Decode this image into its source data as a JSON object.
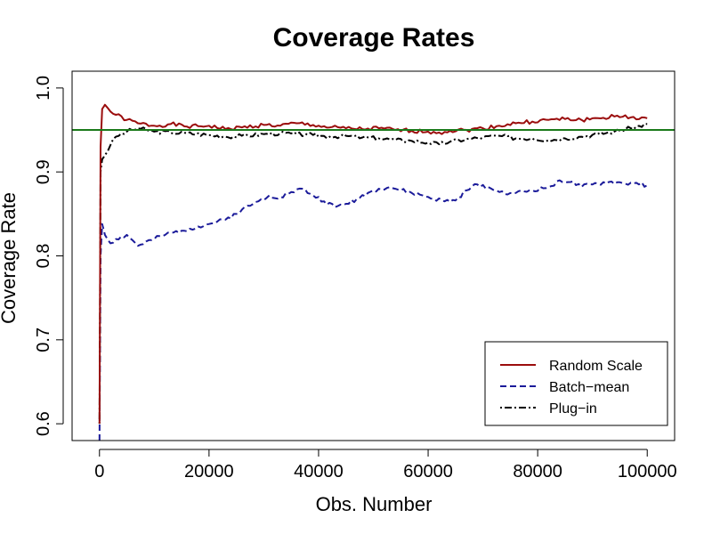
{
  "chart_data": {
    "type": "line",
    "title": "Coverage Rates",
    "xlabel": "Obs. Number",
    "ylabel": "Coverage Rate",
    "xlim": [
      -5000,
      105000
    ],
    "ylim": [
      0.58,
      1.02
    ],
    "xticks": [
      0,
      20000,
      40000,
      60000,
      80000,
      100000
    ],
    "xtick_labels": [
      "0",
      "20000",
      "40000",
      "60000",
      "80000",
      "100000"
    ],
    "yticks": [
      0.6,
      0.7,
      0.8,
      0.9,
      1.0
    ],
    "ytick_labels": [
      "0.6",
      "0.7",
      "0.8",
      "0.9",
      "1.0"
    ],
    "grid": false,
    "legend_position": "bottom-right",
    "reference_line": {
      "y": 0.95,
      "color": "#1a7a1a"
    },
    "series": [
      {
        "name": "Random Scale",
        "color": "#9b0d0d",
        "dash": "solid",
        "points": [
          [
            0,
            0.6
          ],
          [
            200,
            0.93
          ],
          [
            500,
            0.975
          ],
          [
            1000,
            0.98
          ],
          [
            2000,
            0.972
          ],
          [
            3000,
            0.968
          ],
          [
            5000,
            0.962
          ],
          [
            7000,
            0.958
          ],
          [
            10000,
            0.955
          ],
          [
            13000,
            0.957
          ],
          [
            16000,
            0.954
          ],
          [
            20000,
            0.955
          ],
          [
            23000,
            0.951
          ],
          [
            26000,
            0.953
          ],
          [
            30000,
            0.956
          ],
          [
            33000,
            0.955
          ],
          [
            36000,
            0.958
          ],
          [
            39000,
            0.956
          ],
          [
            42000,
            0.953
          ],
          [
            45000,
            0.952
          ],
          [
            48000,
            0.951
          ],
          [
            51000,
            0.952
          ],
          [
            54000,
            0.95
          ],
          [
            57000,
            0.949
          ],
          [
            60000,
            0.948
          ],
          [
            62000,
            0.947
          ],
          [
            64000,
            0.949
          ],
          [
            67000,
            0.95
          ],
          [
            70000,
            0.952
          ],
          [
            73000,
            0.955
          ],
          [
            76000,
            0.958
          ],
          [
            79000,
            0.96
          ],
          [
            82000,
            0.962
          ],
          [
            85000,
            0.963
          ],
          [
            88000,
            0.962
          ],
          [
            91000,
            0.964
          ],
          [
            94000,
            0.966
          ],
          [
            97000,
            0.965
          ],
          [
            100000,
            0.964
          ]
        ]
      },
      {
        "name": "Batch−mean",
        "color": "#1b1b9a",
        "dash": "dashed",
        "points": [
          [
            0,
            0.58
          ],
          [
            200,
            0.8
          ],
          [
            500,
            0.838
          ],
          [
            1000,
            0.825
          ],
          [
            2000,
            0.815
          ],
          [
            3000,
            0.82
          ],
          [
            5000,
            0.825
          ],
          [
            7000,
            0.812
          ],
          [
            10000,
            0.82
          ],
          [
            12000,
            0.825
          ],
          [
            15000,
            0.83
          ],
          [
            18000,
            0.835
          ],
          [
            20000,
            0.838
          ],
          [
            23000,
            0.843
          ],
          [
            26000,
            0.855
          ],
          [
            29000,
            0.865
          ],
          [
            31000,
            0.872
          ],
          [
            33000,
            0.87
          ],
          [
            35000,
            0.876
          ],
          [
            37000,
            0.88
          ],
          [
            39000,
            0.872
          ],
          [
            41000,
            0.865
          ],
          [
            43000,
            0.858
          ],
          [
            45000,
            0.862
          ],
          [
            47000,
            0.868
          ],
          [
            49000,
            0.875
          ],
          [
            51000,
            0.88
          ],
          [
            53000,
            0.882
          ],
          [
            55000,
            0.878
          ],
          [
            57000,
            0.875
          ],
          [
            59000,
            0.872
          ],
          [
            61000,
            0.868
          ],
          [
            63000,
            0.865
          ],
          [
            65000,
            0.866
          ],
          [
            67000,
            0.878
          ],
          [
            69000,
            0.885
          ],
          [
            71000,
            0.882
          ],
          [
            73000,
            0.876
          ],
          [
            76000,
            0.875
          ],
          [
            79000,
            0.878
          ],
          [
            82000,
            0.882
          ],
          [
            84000,
            0.89
          ],
          [
            86000,
            0.888
          ],
          [
            88000,
            0.882
          ],
          [
            90000,
            0.885
          ],
          [
            93000,
            0.888
          ],
          [
            96000,
            0.886
          ],
          [
            98000,
            0.887
          ],
          [
            100000,
            0.884
          ]
        ]
      },
      {
        "name": "Plug−in",
        "color": "#000000",
        "dash": "dotdash",
        "points": [
          [
            0,
            0.6
          ],
          [
            200,
            0.9
          ],
          [
            500,
            0.915
          ],
          [
            1000,
            0.92
          ],
          [
            2000,
            0.932
          ],
          [
            3000,
            0.942
          ],
          [
            5000,
            0.948
          ],
          [
            7000,
            0.952
          ],
          [
            10000,
            0.948
          ],
          [
            13000,
            0.947
          ],
          [
            16000,
            0.946
          ],
          [
            20000,
            0.944
          ],
          [
            23000,
            0.942
          ],
          [
            26000,
            0.943
          ],
          [
            30000,
            0.945
          ],
          [
            33000,
            0.946
          ],
          [
            36000,
            0.945
          ],
          [
            39000,
            0.944
          ],
          [
            42000,
            0.942
          ],
          [
            45000,
            0.943
          ],
          [
            48000,
            0.941
          ],
          [
            51000,
            0.94
          ],
          [
            54000,
            0.938
          ],
          [
            57000,
            0.937
          ],
          [
            60000,
            0.935
          ],
          [
            62000,
            0.933
          ],
          [
            64000,
            0.936
          ],
          [
            67000,
            0.939
          ],
          [
            70000,
            0.941
          ],
          [
            73000,
            0.943
          ],
          [
            76000,
            0.94
          ],
          [
            79000,
            0.94
          ],
          [
            82000,
            0.938
          ],
          [
            85000,
            0.94
          ],
          [
            88000,
            0.942
          ],
          [
            91000,
            0.945
          ],
          [
            94000,
            0.948
          ],
          [
            97000,
            0.952
          ],
          [
            100000,
            0.957
          ]
        ]
      }
    ]
  }
}
